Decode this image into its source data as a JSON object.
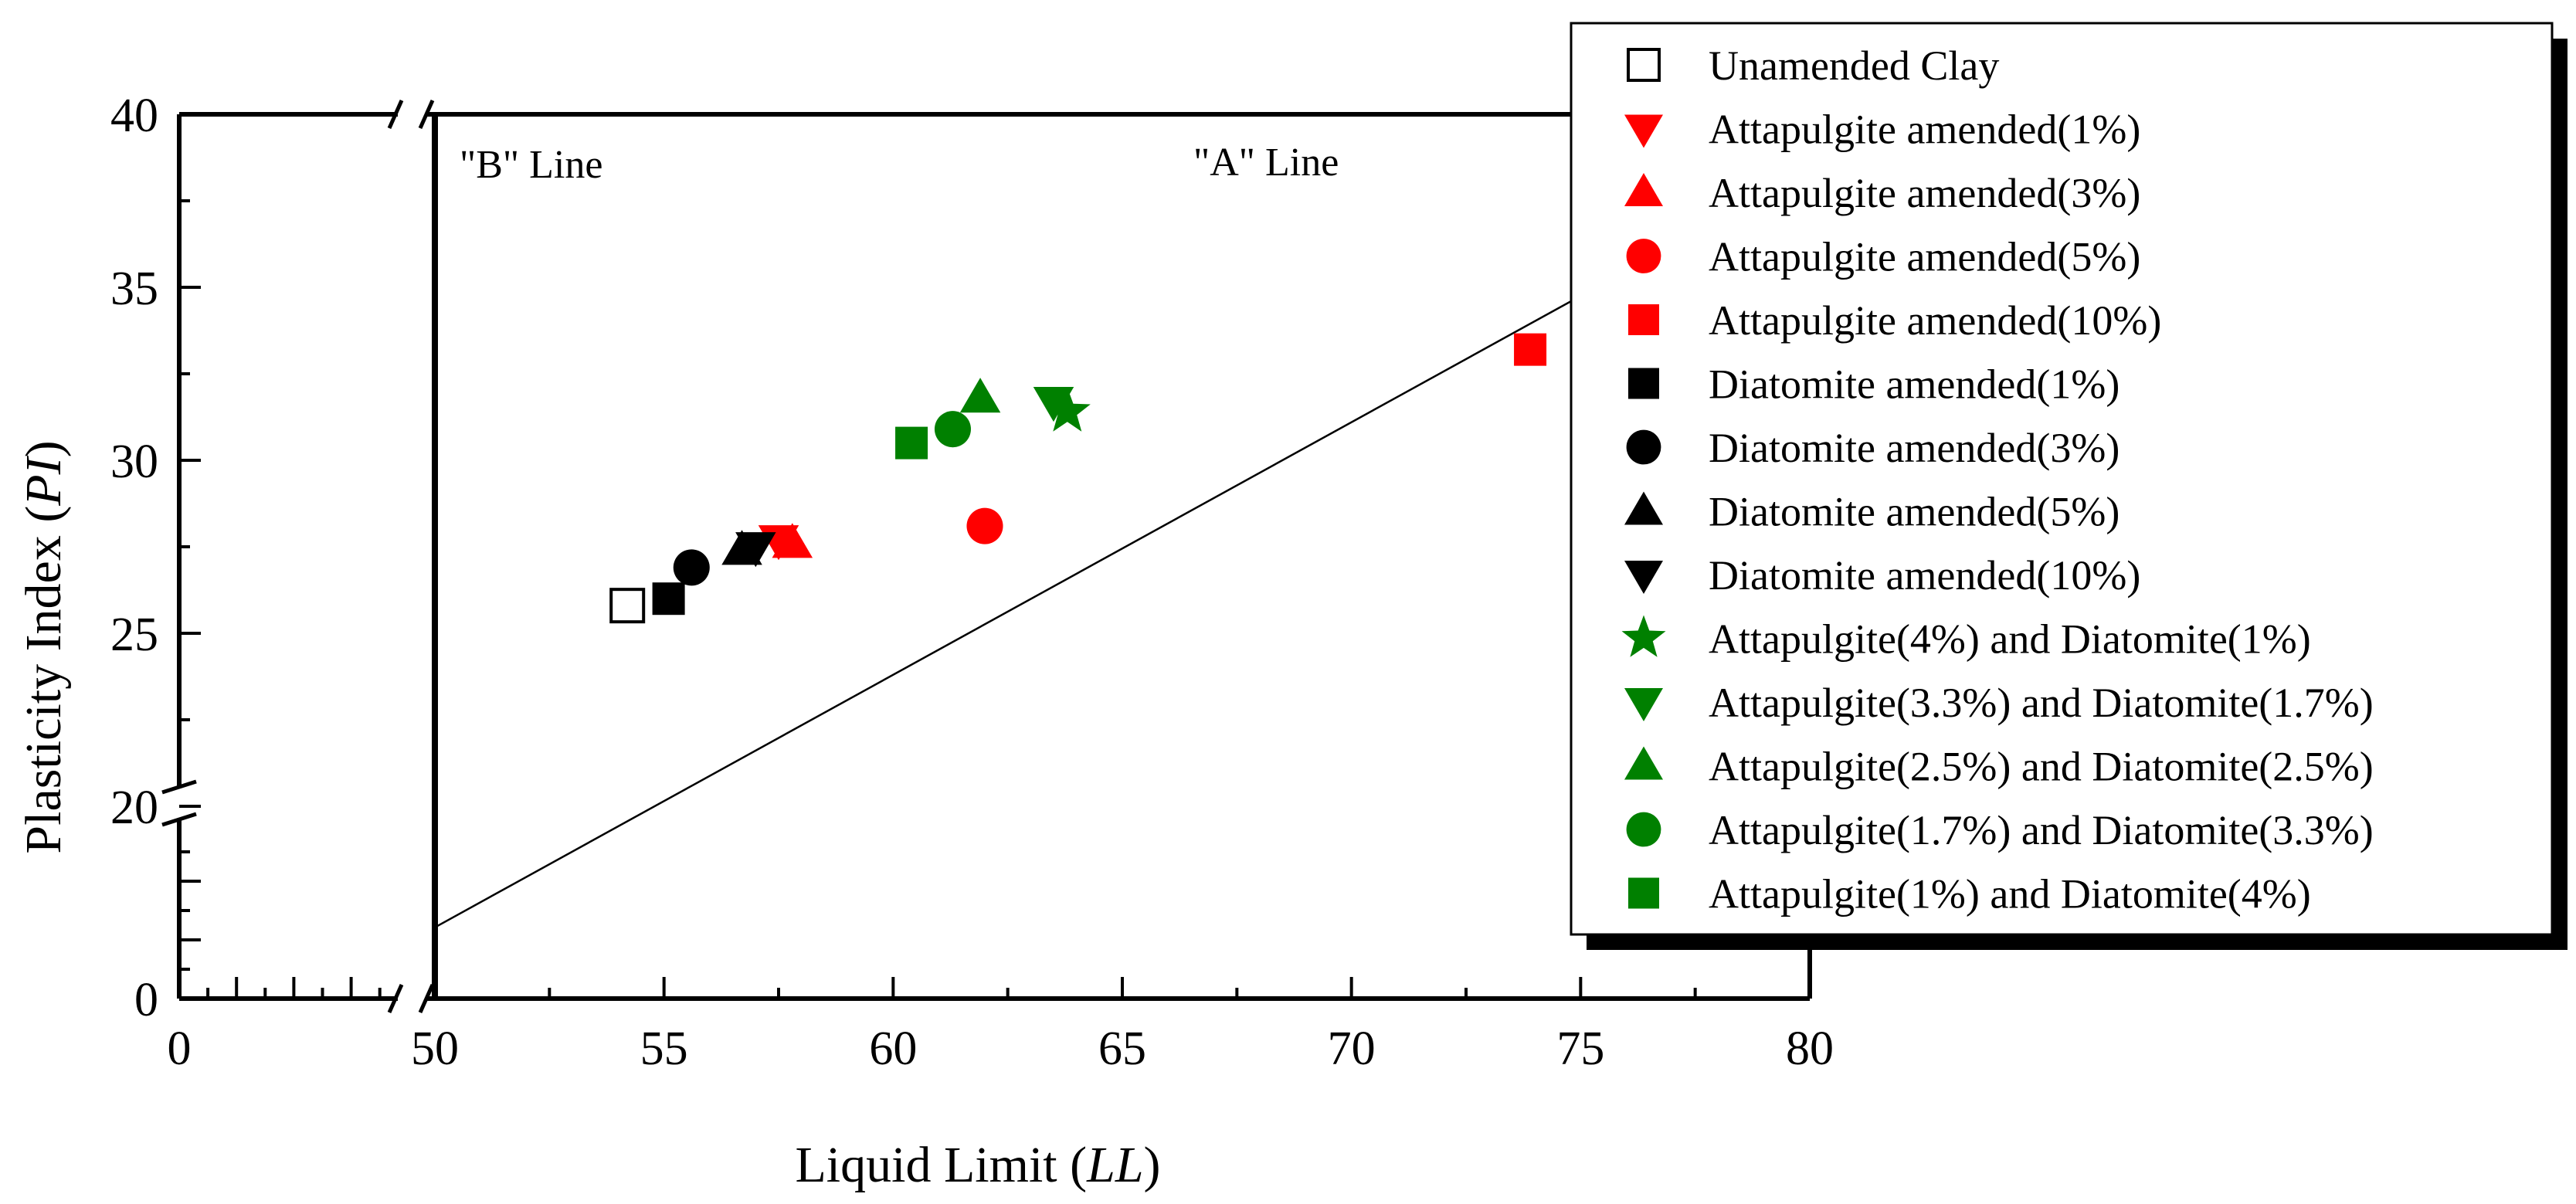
{
  "chart_data": {
    "type": "scatter",
    "title": "",
    "xlabel": "Liquid Limit (LL)",
    "xlabel_parts": [
      "Liquid Limit (",
      "LL",
      ")"
    ],
    "ylabel": "Plasticity Index (PI)",
    "ylabel_parts": [
      "Plasticity Index (",
      "PI",
      ")"
    ],
    "x_break": [
      0,
      50
    ],
    "y_break": [
      0,
      20
    ],
    "xlim": [
      50,
      80
    ],
    "ylim": [
      20,
      40
    ],
    "x_ticks": [
      "0",
      "50",
      "55",
      "60",
      "65",
      "70",
      "75",
      "80"
    ],
    "y_ticks": [
      "0",
      "20",
      "25",
      "30",
      "35",
      "40"
    ],
    "lines": [
      {
        "name": "\"B\" Line",
        "x": 50,
        "vertical": true
      },
      {
        "name": "\"A\" Line",
        "slope": 0.73,
        "intercept": -20
      }
    ],
    "legend_position": "right",
    "series": [
      {
        "name": "Unamended Clay",
        "marker": "square",
        "color": "#000000",
        "filled": false,
        "points": [
          [
            54.2,
            25.8
          ]
        ]
      },
      {
        "name": "Attapulgite amended(1%)",
        "marker": "triangle-down",
        "color": "#ff0000",
        "filled": true,
        "points": [
          [
            57.5,
            27.7
          ]
        ]
      },
      {
        "name": "Attapulgite amended(3%)",
        "marker": "triangle-up",
        "color": "#ff0000",
        "filled": true,
        "points": [
          [
            57.8,
            27.6
          ]
        ]
      },
      {
        "name": "Attapulgite amended(5%)",
        "marker": "circle",
        "color": "#ff0000",
        "filled": true,
        "points": [
          [
            62.0,
            28.1
          ]
        ]
      },
      {
        "name": "Attapulgite amended(10%)",
        "marker": "square",
        "color": "#ff0000",
        "filled": true,
        "points": [
          [
            73.9,
            33.2
          ]
        ]
      },
      {
        "name": "Diatomite amended(1%)",
        "marker": "square",
        "color": "#000000",
        "filled": true,
        "points": [
          [
            55.1,
            26.0
          ]
        ]
      },
      {
        "name": "Diatomite amended(3%)",
        "marker": "circle",
        "color": "#000000",
        "filled": true,
        "points": [
          [
            55.6,
            26.9
          ]
        ]
      },
      {
        "name": "Diatomite amended(5%)",
        "marker": "triangle-up",
        "color": "#000000",
        "filled": true,
        "points": [
          [
            56.7,
            27.4
          ]
        ]
      },
      {
        "name": "Diatomite amended(10%)",
        "marker": "triangle-down",
        "color": "#000000",
        "filled": true,
        "points": [
          [
            57.0,
            27.5
          ]
        ]
      },
      {
        "name": "Attapulgite(4%) and Diatomite(1%)",
        "marker": "star",
        "color": "#008000",
        "filled": true,
        "points": [
          [
            63.8,
            31.4
          ]
        ]
      },
      {
        "name": "Attapulgite(3.3%) and Diatomite(1.7%)",
        "marker": "triangle-down",
        "color": "#008000",
        "filled": true,
        "points": [
          [
            63.5,
            31.7
          ]
        ]
      },
      {
        "name": "Attapulgite(2.5%) and Diatomite(2.5%)",
        "marker": "triangle-up",
        "color": "#008000",
        "filled": true,
        "points": [
          [
            61.9,
            31.8
          ]
        ]
      },
      {
        "name": "Attapulgite(1.7%) and Diatomite(3.3%)",
        "marker": "circle",
        "color": "#008000",
        "filled": true,
        "points": [
          [
            61.3,
            30.9
          ]
        ]
      },
      {
        "name": "Attapulgite(1%) and Diatomite(4%)",
        "marker": "square",
        "color": "#008000",
        "filled": true,
        "points": [
          [
            60.4,
            30.5
          ]
        ]
      }
    ]
  }
}
